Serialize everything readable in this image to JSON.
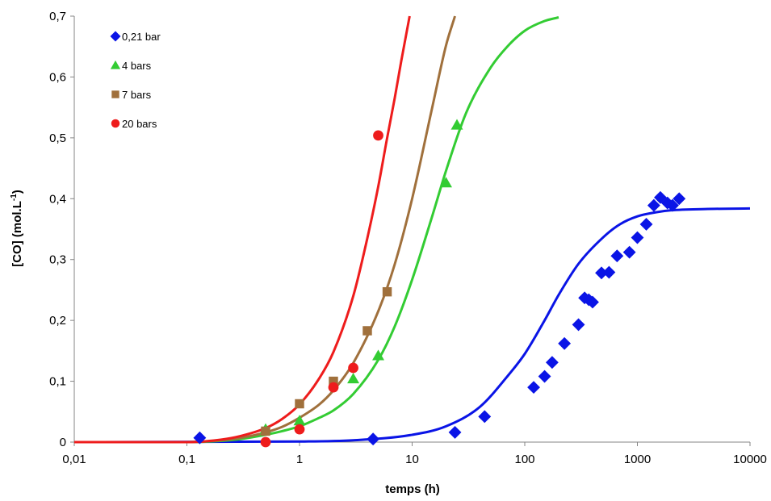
{
  "chart_data": {
    "type": "scatter",
    "title": "",
    "xlabel": "temps  (h)",
    "ylabel": "[CO]  (mol.L",
    "ylabel_sup": "-1",
    "ylabel_close": ")",
    "x_scale": "log",
    "xlim": [
      0.01,
      10000
    ],
    "ylim": [
      0,
      0.7
    ],
    "x_ticks": [
      0.01,
      0.1,
      1,
      10,
      100,
      1000,
      10000
    ],
    "x_tick_labels": [
      "0,01",
      "0,1",
      "1",
      "10",
      "100",
      "1000",
      "10000"
    ],
    "y_ticks": [
      0,
      0.1,
      0.2,
      0.3,
      0.4,
      0.5,
      0.6,
      0.7
    ],
    "y_tick_labels": [
      "0",
      "0,1",
      "0,2",
      "0,3",
      "0,4",
      "0,5",
      "0,6",
      "0,7"
    ],
    "grid": false,
    "legend_position": "top-left",
    "series": [
      {
        "name": "0,21 bar",
        "color": "#0a14e6",
        "marker": "diamond",
        "points": [
          [
            0.13,
            0.007
          ],
          [
            4.5,
            0.005
          ],
          [
            24,
            0.016
          ],
          [
            44,
            0.042
          ],
          [
            120,
            0.09
          ],
          [
            150,
            0.108
          ],
          [
            175,
            0.131
          ],
          [
            225,
            0.162
          ],
          [
            300,
            0.193
          ],
          [
            340,
            0.237
          ],
          [
            370,
            0.234
          ],
          [
            400,
            0.23
          ],
          [
            480,
            0.278
          ],
          [
            560,
            0.279
          ],
          [
            660,
            0.306
          ],
          [
            850,
            0.312
          ],
          [
            1000,
            0.336
          ],
          [
            1200,
            0.358
          ],
          [
            1400,
            0.389
          ],
          [
            1600,
            0.402
          ],
          [
            1850,
            0.393
          ],
          [
            2050,
            0.389
          ],
          [
            2350,
            0.4
          ]
        ],
        "curve": [
          [
            0.01,
            0.0
          ],
          [
            1,
            0.001
          ],
          [
            3,
            0.003
          ],
          [
            10,
            0.012
          ],
          [
            20,
            0.026
          ],
          [
            40,
            0.058
          ],
          [
            70,
            0.108
          ],
          [
            100,
            0.145
          ],
          [
            150,
            0.2
          ],
          [
            200,
            0.242
          ],
          [
            300,
            0.293
          ],
          [
            500,
            0.337
          ],
          [
            700,
            0.358
          ],
          [
            1000,
            0.371
          ],
          [
            1500,
            0.378
          ],
          [
            2000,
            0.381
          ],
          [
            4000,
            0.383
          ],
          [
            10000,
            0.384
          ]
        ]
      },
      {
        "name": "4 bars",
        "color": "#33cc33",
        "marker": "triangle",
        "points": [
          [
            0.5,
            0.021
          ],
          [
            1,
            0.035
          ],
          [
            3,
            0.104
          ],
          [
            5,
            0.142
          ],
          [
            20,
            0.426
          ],
          [
            25,
            0.521
          ]
        ],
        "curve": [
          [
            0.01,
            0.0
          ],
          [
            0.1,
            0.0
          ],
          [
            0.2,
            0.002
          ],
          [
            0.3,
            0.005
          ],
          [
            0.5,
            0.012
          ],
          [
            0.7,
            0.018
          ],
          [
            1,
            0.026
          ],
          [
            1.5,
            0.04
          ],
          [
            2,
            0.052
          ],
          [
            3,
            0.079
          ],
          [
            5,
            0.135
          ],
          [
            7,
            0.19
          ],
          [
            10,
            0.267
          ],
          [
            15,
            0.37
          ],
          [
            20,
            0.446
          ],
          [
            30,
            0.54
          ],
          [
            50,
            0.616
          ],
          [
            70,
            0.65
          ],
          [
            100,
            0.676
          ],
          [
            150,
            0.692
          ],
          [
            200,
            0.698
          ]
        ]
      },
      {
        "name": "7 bars",
        "color": "#a0703c",
        "marker": "square",
        "points": [
          [
            0.5,
            0.018
          ],
          [
            1,
            0.063
          ],
          [
            2,
            0.1
          ],
          [
            4,
            0.183
          ],
          [
            6,
            0.247
          ]
        ],
        "curve": [
          [
            0.01,
            0.0
          ],
          [
            0.1,
            0.0
          ],
          [
            0.2,
            0.003
          ],
          [
            0.3,
            0.007
          ],
          [
            0.5,
            0.016
          ],
          [
            0.7,
            0.025
          ],
          [
            1,
            0.04
          ],
          [
            1.5,
            0.062
          ],
          [
            2,
            0.085
          ],
          [
            3,
            0.13
          ],
          [
            5,
            0.215
          ],
          [
            7,
            0.292
          ],
          [
            10,
            0.4
          ],
          [
            15,
            0.548
          ],
          [
            20,
            0.652
          ],
          [
            24,
            0.7
          ]
        ]
      },
      {
        "name": "20 bars",
        "color": "#ee1c1c",
        "marker": "circle",
        "points": [
          [
            0.5,
            0.0
          ],
          [
            1,
            0.021
          ],
          [
            2,
            0.09
          ],
          [
            3,
            0.122
          ],
          [
            5,
            0.504
          ]
        ],
        "curve": [
          [
            0.01,
            0.0
          ],
          [
            0.1,
            0.0
          ],
          [
            0.2,
            0.004
          ],
          [
            0.3,
            0.01
          ],
          [
            0.5,
            0.023
          ],
          [
            0.7,
            0.038
          ],
          [
            1,
            0.062
          ],
          [
            1.5,
            0.105
          ],
          [
            2,
            0.148
          ],
          [
            3,
            0.24
          ],
          [
            4,
            0.335
          ],
          [
            5,
            0.42
          ],
          [
            6,
            0.5
          ],
          [
            7,
            0.565
          ],
          [
            8,
            0.626
          ],
          [
            9.5,
            0.7
          ]
        ]
      }
    ]
  }
}
